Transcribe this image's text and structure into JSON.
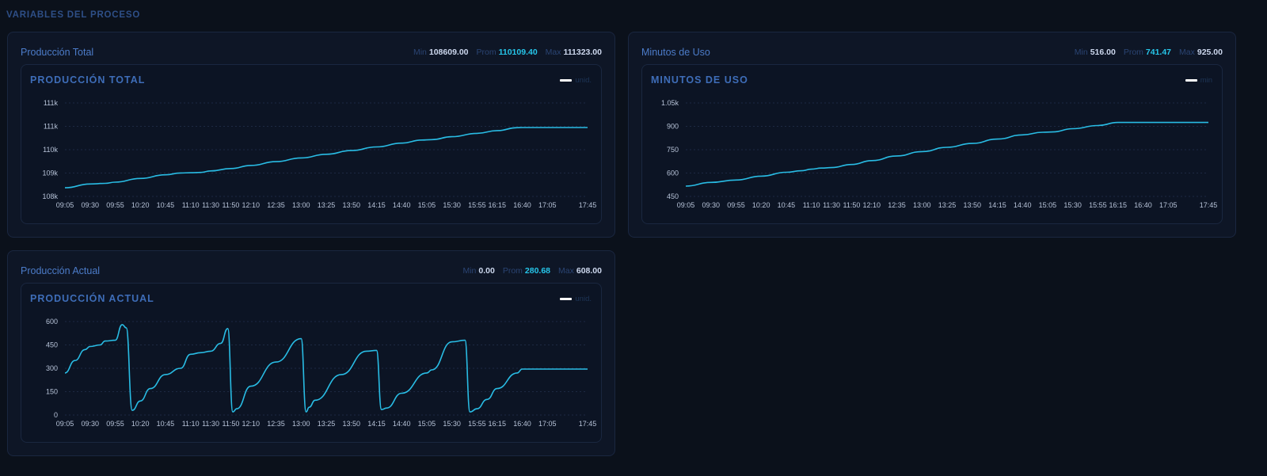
{
  "section_title": "VARIABLES DEL PROCESO",
  "series_color": "#29bce4",
  "cards": [
    {
      "title": "Producción Total",
      "stats": {
        "min_label": "Min",
        "min": "108609.00",
        "avg_label": "Prom",
        "avg": "110109.40",
        "max_label": "Max",
        "max": "111323.00"
      },
      "chart_title": "PRODUCCIÓN TOTAL",
      "legend": "unid."
    },
    {
      "title": "Minutos de Uso",
      "stats": {
        "min_label": "Min",
        "min": "516.00",
        "avg_label": "Prom",
        "avg": "741.47",
        "max_label": "Max",
        "max": "925.00"
      },
      "chart_title": "MINUTOS DE USO",
      "legend": "min"
    },
    {
      "title": "Producción Actual",
      "stats": {
        "min_label": "Min",
        "min": "0.00",
        "avg_label": "Prom",
        "avg": "280.68",
        "max_label": "Max",
        "max": "608.00"
      },
      "chart_title": "PRODUCCIÓN ACTUAL",
      "legend": "unid."
    }
  ],
  "chart_data": [
    {
      "type": "line",
      "title": "PRODUCCIÓN TOTAL",
      "x_ticks": [
        "09:05",
        "09:30",
        "09:55",
        "10:20",
        "10:45",
        "11:10",
        "11:30",
        "11:50",
        "12:10",
        "12:35",
        "13:00",
        "13:25",
        "13:50",
        "14:15",
        "14:40",
        "15:05",
        "15:30",
        "15:55",
        "16:15",
        "16:40",
        "17:05",
        "17:45"
      ],
      "y_ticks": [
        "108k",
        "109k",
        "110k",
        "111k",
        "111k"
      ],
      "ylim": [
        108300,
        111650
      ],
      "series": [
        {
          "x": [
            "09:05",
            "09:30",
            "09:45",
            "09:55",
            "10:20",
            "10:45",
            "11:00",
            "11:10",
            "11:20",
            "11:30",
            "11:50",
            "12:10",
            "12:35",
            "13:00",
            "13:25",
            "13:50",
            "14:15",
            "14:40",
            "15:00",
            "15:10",
            "15:30",
            "15:55",
            "16:15",
            "16:35",
            "16:40",
            "17:05",
            "17:45"
          ],
          "values": [
            108609,
            108745,
            108768,
            108812,
            108945,
            109075,
            109140,
            109148,
            109160,
            109215,
            109300,
            109410,
            109545,
            109680,
            109810,
            109945,
            110075,
            110210,
            110320,
            110335,
            110440,
            110560,
            110660,
            110765,
            110770,
            110770,
            110770
          ]
        }
      ]
    },
    {
      "type": "line",
      "title": "MINUTOS DE USO",
      "x_ticks": [
        "09:05",
        "09:30",
        "09:55",
        "10:20",
        "10:45",
        "11:10",
        "11:30",
        "11:50",
        "12:10",
        "12:35",
        "13:00",
        "13:25",
        "13:50",
        "14:15",
        "14:40",
        "15:05",
        "15:30",
        "15:55",
        "16:15",
        "16:40",
        "17:05",
        "17:45"
      ],
      "y_ticks": [
        "450",
        "600",
        "750",
        "900",
        "1.05k"
      ],
      "ylim": [
        450,
        1050
      ],
      "series": [
        {
          "x": [
            "09:05",
            "09:30",
            "09:55",
            "10:20",
            "10:45",
            "11:00",
            "11:10",
            "11:20",
            "11:30",
            "11:50",
            "12:10",
            "12:35",
            "13:00",
            "13:25",
            "13:50",
            "14:15",
            "14:40",
            "15:00",
            "15:10",
            "15:30",
            "15:55",
            "16:15",
            "16:35",
            "16:40",
            "17:05",
            "17:45"
          ],
          "values": [
            516,
            540,
            555,
            580,
            605,
            615,
            625,
            632,
            635,
            655,
            680,
            710,
            738,
            765,
            790,
            818,
            845,
            862,
            864,
            885,
            905,
            925,
            925,
            925,
            925,
            925
          ]
        }
      ]
    },
    {
      "type": "line",
      "title": "PRODUCCIÓN ACTUAL",
      "x_ticks": [
        "09:05",
        "09:30",
        "09:55",
        "10:20",
        "10:45",
        "11:10",
        "11:30",
        "11:50",
        "12:10",
        "12:35",
        "13:00",
        "13:25",
        "13:50",
        "14:15",
        "14:40",
        "15:05",
        "15:30",
        "15:55",
        "16:15",
        "16:40",
        "17:05",
        "17:45"
      ],
      "y_ticks": [
        "0",
        "150",
        "300",
        "450",
        "600"
      ],
      "ylim": [
        0,
        600
      ],
      "series": [
        {
          "x": [
            "09:05",
            "09:15",
            "09:25",
            "09:30",
            "09:40",
            "09:45",
            "09:55",
            "10:02",
            "10:06",
            "10:12",
            "10:20",
            "10:30",
            "10:45",
            "11:00",
            "11:10",
            "11:20",
            "11:30",
            "11:40",
            "11:47",
            "11:52",
            "11:56",
            "12:10",
            "12:35",
            "13:00",
            "13:05",
            "13:08",
            "13:14",
            "13:40",
            "14:05",
            "14:15",
            "14:20",
            "14:25",
            "14:40",
            "15:05",
            "15:10",
            "15:30",
            "15:43",
            "15:48",
            "15:55",
            "16:05",
            "16:15",
            "16:35",
            "16:40",
            "17:05",
            "17:45"
          ],
          "values": [
            270,
            350,
            420,
            440,
            450,
            475,
            480,
            580,
            560,
            30,
            90,
            170,
            260,
            300,
            390,
            400,
            410,
            460,
            555,
            20,
            40,
            185,
            340,
            490,
            20,
            50,
            95,
            260,
            410,
            415,
            35,
            45,
            140,
            270,
            290,
            470,
            480,
            20,
            40,
            100,
            170,
            270,
            295,
            295,
            295
          ]
        }
      ]
    }
  ]
}
